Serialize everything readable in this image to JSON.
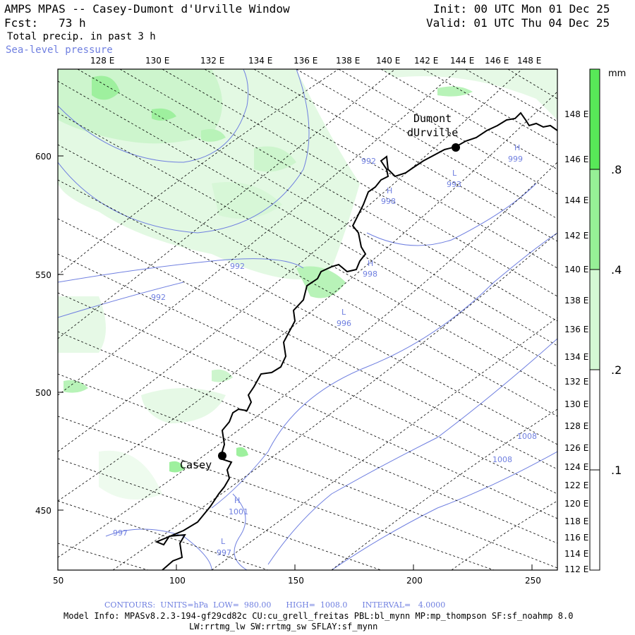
{
  "header": {
    "title": "AMPS MPAS -- Casey-Dumont d'Urville Window",
    "fcst_label": "Fcst:",
    "fcst_value": "73 h",
    "field": "Total precip. in past 3 h",
    "overlay": "Sea-level pressure",
    "init": "Init: 00 UTC Mon 01 Dec 25",
    "valid": "Valid: 01 UTC Thu 04 Dec 25"
  },
  "map": {
    "top_lon_labels": [
      "128 E",
      "130 E",
      "132 E",
      "134 E",
      "136 E",
      "138 E",
      "140 E",
      "142 E",
      "144 E",
      "146 E",
      "148 E"
    ],
    "right_lon_labels": [
      "148 E",
      "146 E",
      "144 E",
      "142 E",
      "140 E",
      "138 E",
      "136 E",
      "134 E",
      "132 E",
      "130 E",
      "128 E",
      "126 E",
      "124 E",
      "122 E",
      "120 E",
      "118 E",
      "116 E",
      "114 E",
      "112 E"
    ],
    "x_ticks": [
      "50",
      "100",
      "150",
      "200",
      "250"
    ],
    "y_ticks": [
      "600",
      "550",
      "500",
      "450"
    ],
    "stations": [
      {
        "name": "Casey",
        "label": "Casey"
      },
      {
        "name": "Dumont",
        "label": "Dumont"
      },
      {
        "name": "dUrville",
        "label": "dUrville"
      }
    ],
    "pressure_labels": [
      {
        "key": "p992a",
        "text": "992"
      },
      {
        "key": "p992b",
        "text": "992"
      },
      {
        "key": "p992c",
        "text": "992"
      },
      {
        "key": "p998a",
        "text": "998"
      },
      {
        "key": "p998b",
        "text": "998"
      },
      {
        "key": "p996",
        "text": "996"
      },
      {
        "key": "p993",
        "text": "993"
      },
      {
        "key": "p999",
        "text": "999"
      },
      {
        "key": "p1008a",
        "text": "1008"
      },
      {
        "key": "p1008b",
        "text": "1008"
      },
      {
        "key": "p1001",
        "text": "1001"
      },
      {
        "key": "p997a",
        "text": "997"
      },
      {
        "key": "p997b",
        "text": "997"
      }
    ],
    "hl_markers": [
      "H",
      "H",
      "L",
      "L",
      "H",
      "H",
      "L"
    ]
  },
  "colorbar": {
    "unit": "mm",
    "labels": [
      ".8",
      ".4",
      ".2",
      ".1"
    ],
    "colors": [
      "#58e858",
      "#96f096",
      "#d4f8d4",
      "#ffffff"
    ]
  },
  "footer": {
    "contours": "CONTOURS:  UNITS=hPa  LOW=  980.00      HIGH=  1008.0      INTERVAL=   4.0000",
    "model_info": "Model Info: MPASv8.2.3-194-gf29cd82c CU:cu_grell_freitas PBL:bl_mynn MP:mp_thompson SF:sf_noahmp 8.0",
    "model_info2": "LW:rrtmg_lw SW:rrtmg_sw SFLAY:sf_mynn"
  }
}
